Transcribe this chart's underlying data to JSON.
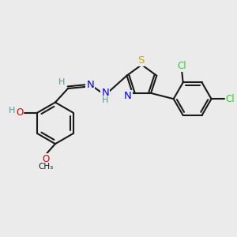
{
  "bg_color": "#ebebeb",
  "bond_color": "#1a1a1a",
  "bond_width": 1.5,
  "atom_colors": {
    "C": "#1a1a1a",
    "N": "#0000ee",
    "O": "#dd0000",
    "S": "#ccaa00",
    "Cl": "#33cc33",
    "H": "#4a9a9a"
  },
  "font_size": 8.5
}
